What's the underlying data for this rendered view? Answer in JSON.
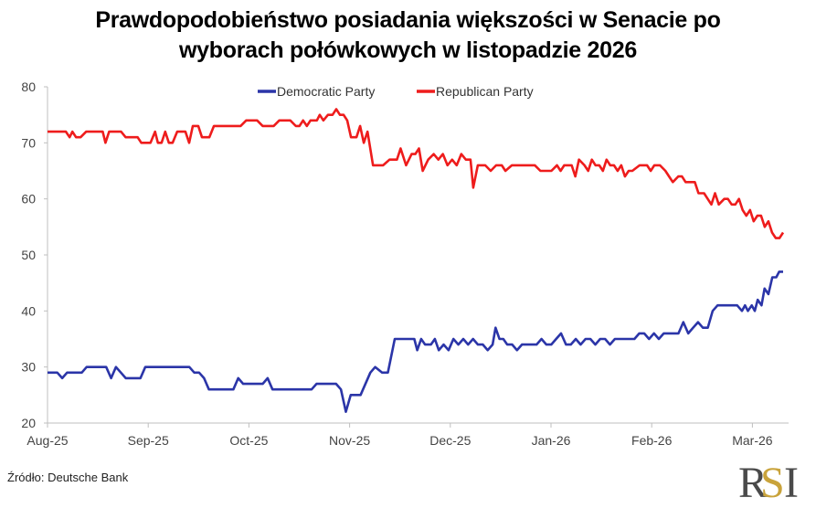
{
  "title_lines": [
    "Prawdopodobieństwo posiadania większości w Senacie po",
    "wyborach połówkowych w listopadzie 2026"
  ],
  "source": "Źródło: Deutsche Bank",
  "logo": {
    "text_r": "R",
    "text_s": "S",
    "text_i": "I",
    "colors": {
      "dark": "#4a4a4a",
      "gold": "#c9a33b"
    }
  },
  "chart_data": {
    "type": "line",
    "title": "Prawdopodobieństwo posiadania większości w Senacie po wyborach połówkowych w listopadzie 2026",
    "xlabel": "",
    "ylabel": "",
    "ylim": [
      20,
      80
    ],
    "yticks": [
      20,
      30,
      40,
      50,
      60,
      70,
      80
    ],
    "xticks": [
      "Aug-25",
      "Sep-25",
      "Oct-25",
      "Nov-25",
      "Dec-25",
      "Jan-26",
      "Feb-26",
      "Mar-26"
    ],
    "x_unit": "months since Aug-25",
    "xlim": [
      0,
      7.3
    ],
    "grid": false,
    "legend": {
      "position": "top-center",
      "entries": [
        "Democratic Party",
        "Republican Party"
      ]
    },
    "series": [
      {
        "name": "Democratic Party",
        "color": "#2b35a8",
        "points": [
          [
            0.0,
            29
          ],
          [
            0.1,
            29
          ],
          [
            0.15,
            28
          ],
          [
            0.2,
            29
          ],
          [
            0.35,
            29
          ],
          [
            0.4,
            30
          ],
          [
            0.6,
            30
          ],
          [
            0.65,
            28
          ],
          [
            0.7,
            30
          ],
          [
            0.75,
            29
          ],
          [
            0.8,
            28
          ],
          [
            0.95,
            28
          ],
          [
            1.0,
            30
          ],
          [
            1.35,
            30
          ],
          [
            1.45,
            30
          ],
          [
            1.5,
            29
          ],
          [
            1.55,
            29
          ],
          [
            1.6,
            28
          ],
          [
            1.65,
            26
          ],
          [
            1.9,
            26
          ],
          [
            1.95,
            28
          ],
          [
            2.0,
            27
          ],
          [
            2.2,
            27
          ],
          [
            2.25,
            28
          ],
          [
            2.3,
            26
          ],
          [
            2.7,
            26
          ],
          [
            2.75,
            27
          ],
          [
            2.95,
            27
          ],
          [
            3.0,
            26
          ],
          [
            3.05,
            22
          ],
          [
            3.1,
            25
          ],
          [
            3.2,
            25
          ],
          [
            3.3,
            29
          ],
          [
            3.35,
            30
          ],
          [
            3.42,
            29
          ],
          [
            3.48,
            29
          ],
          [
            3.55,
            35
          ],
          [
            3.75,
            35
          ],
          [
            3.78,
            33
          ],
          [
            3.82,
            35
          ],
          [
            3.86,
            34
          ],
          [
            3.92,
            34
          ],
          [
            3.96,
            35
          ],
          [
            4.0,
            33
          ],
          [
            4.05,
            34
          ],
          [
            4.1,
            33
          ],
          [
            4.15,
            35
          ],
          [
            4.2,
            34
          ],
          [
            4.25,
            35
          ],
          [
            4.3,
            34
          ],
          [
            4.35,
            35
          ],
          [
            4.4,
            34
          ],
          [
            4.45,
            34
          ],
          [
            4.5,
            33
          ],
          [
            4.55,
            34
          ],
          [
            4.58,
            37
          ],
          [
            4.62,
            35
          ],
          [
            4.66,
            35
          ],
          [
            4.7,
            34
          ],
          [
            4.75,
            34
          ],
          [
            4.8,
            33
          ],
          [
            4.85,
            34
          ],
          [
            4.9,
            34
          ],
          [
            4.95,
            34
          ],
          [
            5.0,
            34
          ],
          [
            5.05,
            35
          ],
          [
            5.1,
            34
          ],
          [
            5.15,
            34
          ],
          [
            5.2,
            35
          ],
          [
            5.25,
            36
          ],
          [
            5.3,
            34
          ],
          [
            5.35,
            34
          ],
          [
            5.4,
            35
          ],
          [
            5.45,
            34
          ],
          [
            5.5,
            35
          ],
          [
            5.55,
            35
          ],
          [
            5.6,
            34
          ],
          [
            5.65,
            35
          ],
          [
            5.7,
            35
          ],
          [
            5.75,
            34
          ],
          [
            5.8,
            35
          ],
          [
            5.85,
            35
          ],
          [
            5.9,
            35
          ],
          [
            5.95,
            35
          ],
          [
            6.0,
            35
          ],
          [
            6.05,
            36
          ],
          [
            6.1,
            36
          ],
          [
            6.15,
            35
          ],
          [
            6.2,
            36
          ],
          [
            6.25,
            35
          ],
          [
            6.3,
            36
          ],
          [
            6.35,
            36
          ],
          [
            6.4,
            36
          ],
          [
            6.45,
            36
          ],
          [
            6.5,
            38
          ],
          [
            6.55,
            36
          ],
          [
            6.6,
            37
          ],
          [
            6.65,
            38
          ],
          [
            6.7,
            37
          ],
          [
            6.75,
            37
          ],
          [
            6.8,
            40
          ],
          [
            6.85,
            41
          ],
          [
            6.95,
            41
          ],
          [
            7.05,
            41
          ],
          [
            7.1,
            40
          ],
          [
            7.13,
            41
          ],
          [
            7.16,
            40
          ],
          [
            7.2,
            41
          ],
          [
            7.23,
            40
          ],
          [
            7.26,
            42
          ],
          [
            7.3,
            41
          ],
          [
            7.33,
            44
          ],
          [
            7.37,
            43
          ],
          [
            7.41,
            46
          ],
          [
            7.45,
            46
          ],
          [
            7.48,
            47
          ],
          [
            7.52,
            47
          ]
        ]
      },
      {
        "name": "Republican Party",
        "color": "#ee1c1c",
        "points": [
          [
            0.0,
            72
          ],
          [
            0.2,
            72
          ],
          [
            0.24,
            71
          ],
          [
            0.27,
            72
          ],
          [
            0.31,
            71
          ],
          [
            0.36,
            71
          ],
          [
            0.42,
            72
          ],
          [
            0.6,
            72
          ],
          [
            0.63,
            70
          ],
          [
            0.67,
            72
          ],
          [
            0.8,
            72
          ],
          [
            0.85,
            71
          ],
          [
            0.98,
            71
          ],
          [
            1.02,
            70
          ],
          [
            1.12,
            70
          ],
          [
            1.17,
            72
          ],
          [
            1.2,
            70
          ],
          [
            1.24,
            70
          ],
          [
            1.28,
            72
          ],
          [
            1.32,
            70
          ],
          [
            1.36,
            70
          ],
          [
            1.41,
            72
          ],
          [
            1.5,
            72
          ],
          [
            1.54,
            70
          ],
          [
            1.58,
            73
          ],
          [
            1.64,
            73
          ],
          [
            1.68,
            71
          ],
          [
            1.76,
            71
          ],
          [
            1.81,
            73
          ],
          [
            2.1,
            73
          ],
          [
            2.16,
            74
          ],
          [
            2.28,
            74
          ],
          [
            2.34,
            73
          ],
          [
            2.46,
            73
          ],
          [
            2.52,
            74
          ],
          [
            2.64,
            74
          ],
          [
            2.7,
            73
          ],
          [
            2.74,
            73
          ],
          [
            2.78,
            74
          ],
          [
            2.82,
            73
          ],
          [
            2.86,
            74
          ],
          [
            2.93,
            74
          ],
          [
            2.96,
            75
          ],
          [
            3.0,
            74
          ],
          [
            3.05,
            75
          ],
          [
            3.1,
            75
          ],
          [
            3.14,
            76
          ],
          [
            3.18,
            75
          ],
          [
            3.22,
            75
          ],
          [
            3.26,
            74
          ],
          [
            3.3,
            71
          ],
          [
            3.36,
            71
          ],
          [
            3.4,
            73
          ],
          [
            3.44,
            70
          ],
          [
            3.48,
            72
          ],
          [
            3.54,
            66
          ],
          [
            3.65,
            66
          ],
          [
            3.72,
            67
          ],
          [
            3.8,
            67
          ],
          [
            3.84,
            69
          ],
          [
            3.9,
            66
          ],
          [
            3.96,
            68
          ],
          [
            4.0,
            68
          ],
          [
            4.04,
            69
          ],
          [
            4.08,
            65
          ],
          [
            4.14,
            67
          ],
          [
            4.2,
            68
          ],
          [
            4.25,
            67
          ],
          [
            4.3,
            68
          ],
          [
            4.35,
            66
          ],
          [
            4.4,
            67
          ],
          [
            4.45,
            66
          ],
          [
            4.5,
            68
          ],
          [
            4.55,
            67
          ],
          [
            4.6,
            67
          ],
          [
            4.63,
            62
          ],
          [
            4.68,
            66
          ],
          [
            4.76,
            66
          ],
          [
            4.82,
            65
          ],
          [
            4.88,
            66
          ],
          [
            4.94,
            66
          ],
          [
            4.98,
            65
          ],
          [
            5.05,
            66
          ],
          [
            5.3,
            66
          ],
          [
            5.36,
            65
          ],
          [
            5.48,
            65
          ],
          [
            5.54,
            66
          ],
          [
            5.58,
            65
          ],
          [
            5.62,
            66
          ],
          [
            5.7,
            66
          ],
          [
            5.74,
            64
          ],
          [
            5.78,
            67
          ],
          [
            5.84,
            66
          ],
          [
            5.88,
            65
          ],
          [
            5.92,
            67
          ],
          [
            5.96,
            66
          ],
          [
            6.0,
            66
          ],
          [
            6.04,
            65
          ],
          [
            6.08,
            67
          ],
          [
            6.12,
            66
          ],
          [
            6.16,
            66
          ],
          [
            6.2,
            65
          ],
          [
            6.24,
            66
          ],
          [
            6.28,
            64
          ],
          [
            6.32,
            65
          ],
          [
            6.36,
            65
          ],
          [
            6.44,
            66
          ],
          [
            6.52,
            66
          ],
          [
            6.56,
            65
          ],
          [
            6.6,
            66
          ],
          [
            6.66,
            66
          ],
          [
            6.72,
            65
          ],
          [
            6.76,
            64
          ],
          [
            6.8,
            63
          ],
          [
            6.86,
            64
          ],
          [
            6.9,
            64
          ],
          [
            6.94,
            63
          ],
          [
            7.0,
            63
          ],
          [
            7.04,
            63
          ],
          [
            7.08,
            61
          ],
          [
            7.14,
            61
          ],
          [
            7.18,
            60
          ],
          [
            7.22,
            59
          ],
          [
            7.26,
            61
          ],
          [
            7.3,
            59
          ],
          [
            7.36,
            60
          ],
          [
            7.4,
            60
          ],
          [
            7.44,
            59
          ],
          [
            7.48,
            59
          ],
          [
            7.52,
            60
          ],
          [
            7.56,
            58
          ],
          [
            7.6,
            57
          ],
          [
            7.64,
            58
          ],
          [
            7.68,
            56
          ],
          [
            7.72,
            57
          ],
          [
            7.76,
            57
          ],
          [
            7.8,
            55
          ],
          [
            7.84,
            56
          ],
          [
            7.88,
            54
          ],
          [
            7.92,
            53
          ],
          [
            7.96,
            53
          ],
          [
            8.0,
            54
          ]
        ]
      }
    ]
  }
}
